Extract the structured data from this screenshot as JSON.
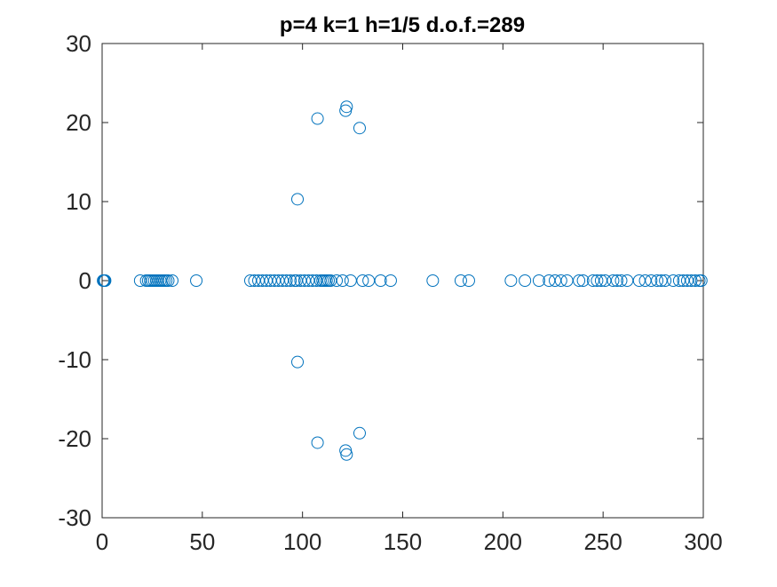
{
  "chart_data": {
    "type": "scatter",
    "title": "p=4 k=1 h=1/5 d.o.f.=289",
    "xlabel": "",
    "ylabel": "",
    "xlim": [
      0,
      300
    ],
    "ylim": [
      -30,
      30
    ],
    "xticks": [
      0,
      50,
      100,
      150,
      200,
      250,
      300
    ],
    "yticks": [
      -30,
      -20,
      -10,
      0,
      10,
      20,
      30
    ],
    "grid": false,
    "legend": "none",
    "marker": "circle-open",
    "marker_color": "#0072BD",
    "axis_color": "#262626",
    "series": [
      {
        "x": [
          0.5,
          0.8,
          1.0,
          1.2,
          1.5,
          19,
          22,
          23,
          24,
          25,
          26,
          27,
          28,
          29,
          30,
          31,
          32,
          33,
          35,
          47,
          74,
          76,
          78,
          80,
          82,
          84,
          86,
          88,
          90,
          92,
          94,
          96,
          97,
          99,
          101,
          103,
          105,
          107,
          109,
          110,
          111,
          112,
          113,
          114,
          117,
          120,
          124,
          130,
          133,
          139,
          144,
          165,
          179,
          183,
          204,
          211,
          218,
          223,
          226,
          229,
          232,
          238,
          240,
          245,
          247,
          249,
          251,
          255,
          257,
          259,
          262,
          268,
          271,
          274,
          277,
          279,
          281,
          285,
          288,
          290,
          292,
          294,
          296,
          298,
          299,
          97.5,
          97.5,
          107.5,
          107.5,
          121.5,
          121.5,
          122,
          122,
          128.5,
          128.5
        ],
        "y": [
          0,
          0,
          0,
          0,
          0,
          0,
          0,
          0,
          0,
          0,
          0,
          0,
          0,
          0,
          0,
          0,
          0,
          0,
          0,
          0,
          0,
          0,
          0,
          0,
          0,
          0,
          0,
          0,
          0,
          0,
          0,
          0,
          0,
          0,
          0,
          0,
          0,
          0,
          0,
          0,
          0,
          0,
          0,
          0,
          0,
          0,
          0,
          0,
          0,
          0,
          0,
          0,
          0,
          0,
          0,
          0,
          0,
          0,
          0,
          0,
          0,
          0,
          0,
          0,
          0,
          0,
          0,
          0,
          0,
          0,
          0,
          0,
          0,
          0,
          0,
          0,
          0,
          0,
          0,
          0,
          0,
          0,
          0,
          0,
          0,
          10.3,
          -10.3,
          20.5,
          -20.5,
          21.5,
          -21.5,
          22.0,
          -22.0,
          19.3,
          -19.3
        ]
      }
    ]
  }
}
